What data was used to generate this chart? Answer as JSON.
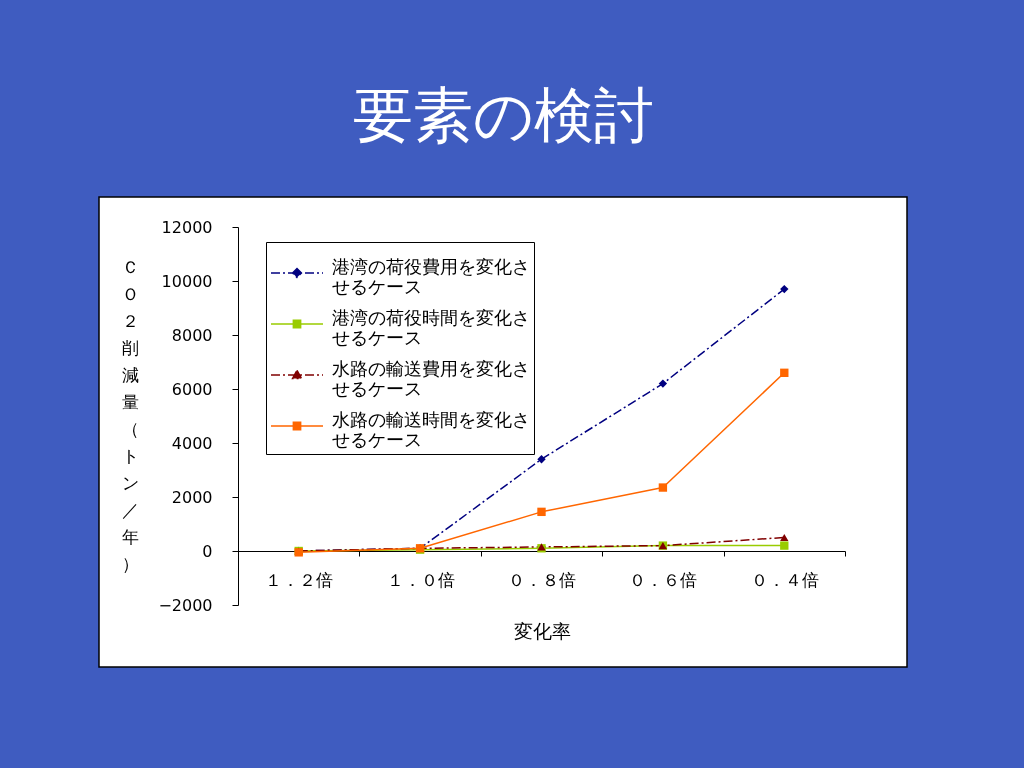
{
  "chart_data": {
    "type": "line",
    "title": "要素の検討",
    "xlabel": "変化率",
    "ylabel": "ＣＯ２削減量（トン／年）",
    "categories": [
      "１．２倍",
      "１．０倍",
      "０．８倍",
      "０．６倍",
      "０．４倍"
    ],
    "series": [
      {
        "name": "港湾の荷役費用を変化させるケース",
        "color": "#000080",
        "marker": "diamond",
        "line_style": "dashdot",
        "values": [
          0,
          100,
          3400,
          6200,
          9700
        ]
      },
      {
        "name": "港湾の荷役時間を変化させるケース",
        "color": "#99cc00",
        "marker": "square",
        "line_style": "solid",
        "values": [
          0,
          50,
          100,
          200,
          200
        ]
      },
      {
        "name": "水路の輸送費用を変化させるケース",
        "color": "#800000",
        "marker": "triangle",
        "line_style": "dashdot",
        "values": [
          0,
          100,
          150,
          200,
          500
        ]
      },
      {
        "name": "水路の輸送時間を変化させるケース",
        "color": "#ff6600",
        "marker": "square",
        "line_style": "solid",
        "values": [
          -50,
          100,
          1450,
          2350,
          6600
        ]
      }
    ],
    "ylim": [
      -2000,
      12000
    ],
    "yticks": [
      -2000,
      0,
      2000,
      4000,
      6000,
      8000,
      10000,
      12000
    ],
    "grid": false,
    "legend": "top left"
  }
}
